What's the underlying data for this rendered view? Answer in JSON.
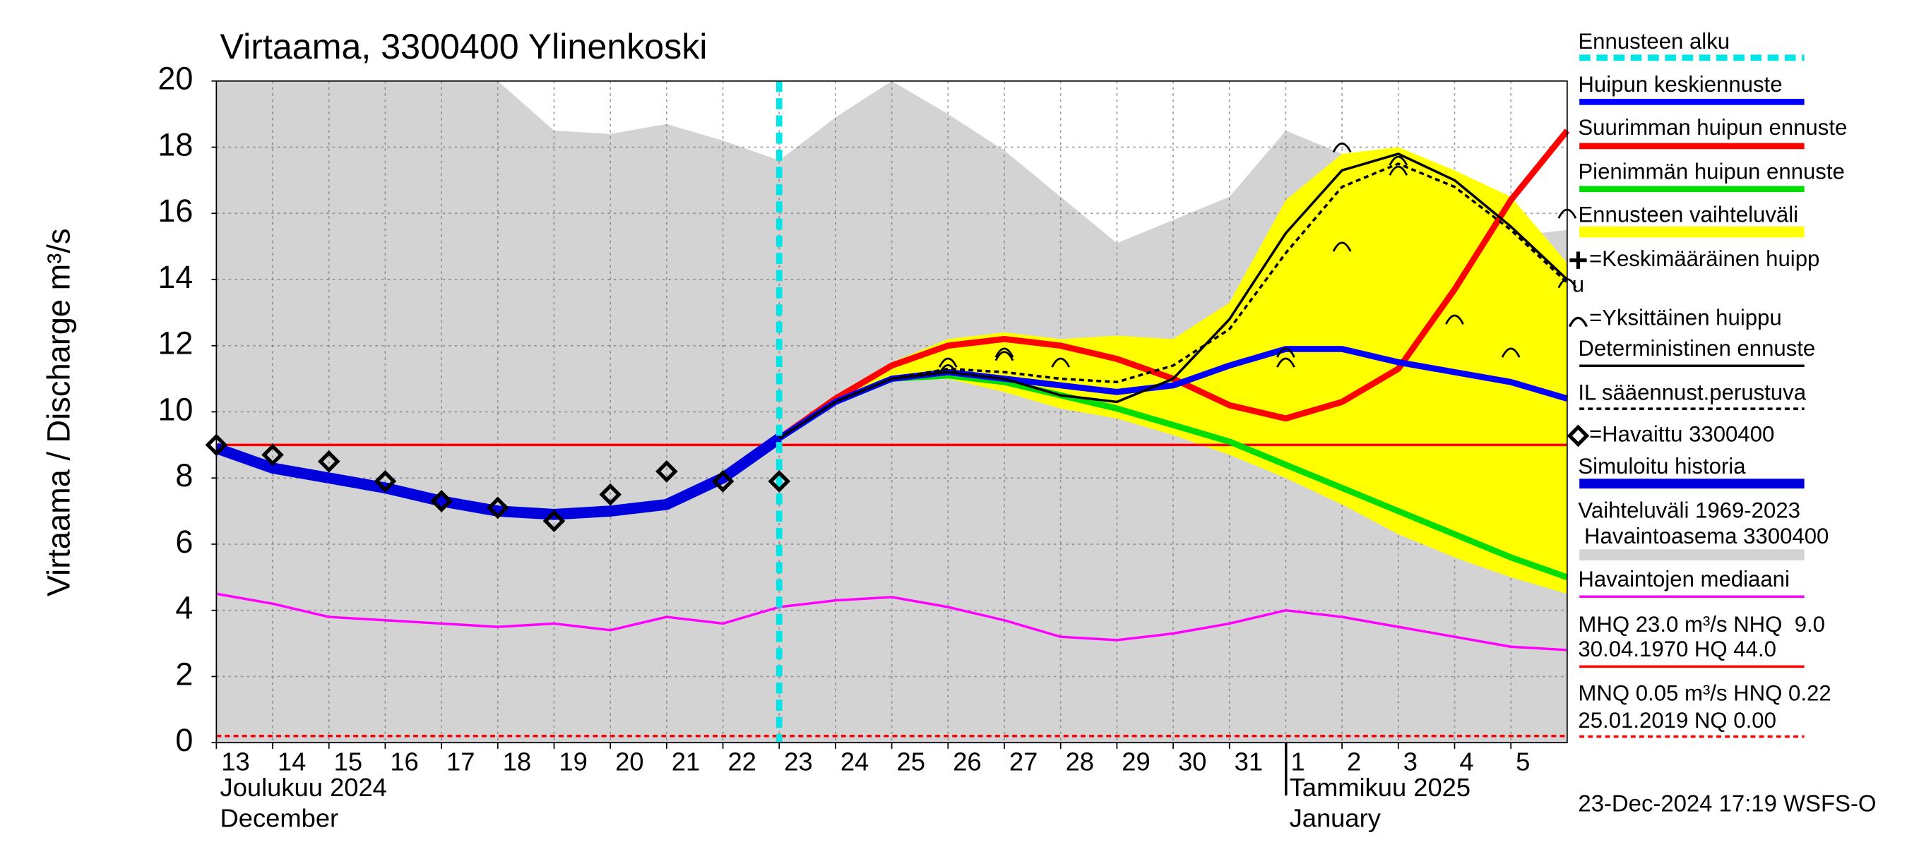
{
  "chart_data": {
    "type": "line",
    "title": "Virtaama, 3300400 Ylinenkoski",
    "y_label": "Virtaama / Discharge   m³/s",
    "x": [
      0,
      1,
      2,
      3,
      4,
      5,
      6,
      7,
      8,
      9,
      10,
      11,
      12,
      13,
      14,
      15,
      16,
      17,
      18,
      19,
      20,
      21,
      22,
      23,
      24
    ],
    "xlim": [
      0,
      24
    ],
    "xticks": [
      {
        "value": 0,
        "label": "13"
      },
      {
        "value": 1,
        "label": "14"
      },
      {
        "value": 2,
        "label": "15"
      },
      {
        "value": 3,
        "label": "16"
      },
      {
        "value": 4,
        "label": "17"
      },
      {
        "value": 5,
        "label": "18"
      },
      {
        "value": 6,
        "label": "19"
      },
      {
        "value": 7,
        "label": "20"
      },
      {
        "value": 8,
        "label": "21"
      },
      {
        "value": 9,
        "label": "22"
      },
      {
        "value": 10,
        "label": "23"
      },
      {
        "value": 11,
        "label": "24"
      },
      {
        "value": 12,
        "label": "25"
      },
      {
        "value": 13,
        "label": "26"
      },
      {
        "value": 14,
        "label": "27"
      },
      {
        "value": 15,
        "label": "28"
      },
      {
        "value": 16,
        "label": "29"
      },
      {
        "value": 17,
        "label": "30"
      },
      {
        "value": 18,
        "label": "31"
      },
      {
        "value": 19,
        "label": "1"
      },
      {
        "value": 20,
        "label": "2"
      },
      {
        "value": 21,
        "label": "3"
      },
      {
        "value": 22,
        "label": "4"
      },
      {
        "value": 23,
        "label": "5"
      }
    ],
    "month_labels": [
      {
        "value": 0,
        "lines": [
          "Joulukuu  2024",
          "December"
        ]
      },
      {
        "value": 19,
        "lines": [
          "Tammikuu  2025",
          "January"
        ]
      }
    ],
    "ylim": [
      0,
      20
    ],
    "yticks": [
      0,
      2,
      4,
      6,
      8,
      10,
      12,
      14,
      16,
      18,
      20
    ],
    "grid": true,
    "forecast_start": 10,
    "variation_range": {
      "color": "#d3d3d3",
      "upper": [
        20,
        20,
        20,
        20,
        20,
        20,
        18.5,
        18.4,
        18.7,
        18.2,
        17.6,
        18.9,
        20,
        19,
        17.9,
        16.5,
        15.1,
        15.8,
        16.5,
        18.5,
        17.8,
        16.8,
        16.2,
        15.3,
        15.5
      ],
      "lower": [
        0,
        0,
        0,
        0,
        0,
        0,
        0,
        0,
        0,
        0,
        0,
        0,
        0,
        0,
        0,
        0,
        0,
        0,
        0,
        0,
        0,
        0,
        0,
        0,
        0
      ]
    },
    "forecast_range": {
      "color": "#ffff00",
      "upper": [
        null,
        null,
        null,
        null,
        null,
        null,
        null,
        null,
        null,
        null,
        9.2,
        10.5,
        11.5,
        12.2,
        12.4,
        12.2,
        12.3,
        12.2,
        13.3,
        16.4,
        17.8,
        18.0,
        17.3,
        16.5,
        14.5
      ],
      "lower": [
        null,
        null,
        null,
        null,
        null,
        null,
        null,
        null,
        null,
        null,
        9.2,
        10.3,
        11.0,
        11.0,
        10.6,
        10.1,
        9.8,
        9.3,
        8.7,
        8.0,
        7.2,
        6.3,
        5.6,
        5.0,
        4.5
      ]
    },
    "reference_lines": [
      {
        "value": 9.0,
        "color": "#ff0000",
        "style": "thin"
      },
      {
        "value": 0.2,
        "color": "#ff0000",
        "style": "dashed"
      }
    ],
    "series": [
      {
        "color": "#ff00ff",
        "style": "thin",
        "values": [
          4.5,
          4.2,
          3.8,
          3.7,
          3.6,
          3.5,
          3.6,
          3.4,
          3.8,
          3.6,
          4.1,
          4.3,
          4.4,
          4.1,
          3.7,
          3.2,
          3.1,
          3.3,
          3.6,
          4.0,
          3.8,
          3.5,
          3.2,
          2.9,
          2.8
        ]
      },
      {
        "color": "#0000dd",
        "style": "history",
        "values": [
          8.9,
          8.3,
          8.0,
          7.7,
          7.3,
          7.0,
          6.9,
          7.0,
          7.2,
          8.0,
          9.2,
          null,
          null,
          null,
          null,
          null,
          null,
          null,
          null,
          null,
          null,
          null,
          null,
          null,
          null
        ]
      },
      {
        "color": "#00dd00",
        "style": "thick",
        "values": [
          null,
          null,
          null,
          null,
          null,
          null,
          null,
          null,
          null,
          null,
          9.2,
          10.3,
          11.0,
          11.1,
          10.9,
          10.5,
          10.1,
          9.6,
          9.1,
          8.4,
          7.7,
          7.0,
          6.3,
          5.6,
          5.0
        ]
      },
      {
        "color": "#ff0000",
        "style": "thick",
        "values": [
          null,
          null,
          null,
          null,
          null,
          null,
          null,
          null,
          null,
          null,
          9.2,
          10.4,
          11.4,
          12.0,
          12.2,
          12.0,
          11.6,
          11.0,
          10.2,
          9.8,
          10.3,
          11.3,
          13.7,
          16.4,
          18.5
        ]
      },
      {
        "color": "#0000ff",
        "style": "thick",
        "values": [
          null,
          null,
          null,
          null,
          null,
          null,
          null,
          null,
          null,
          null,
          9.2,
          10.3,
          11.0,
          11.2,
          11.0,
          10.8,
          10.6,
          10.8,
          11.4,
          11.9,
          11.9,
          11.5,
          11.2,
          10.9,
          10.4
        ]
      },
      {
        "color": "#000000",
        "style": "thin",
        "values": [
          null,
          null,
          null,
          null,
          null,
          null,
          null,
          null,
          null,
          null,
          9.2,
          10.3,
          11.0,
          11.2,
          11.0,
          10.5,
          10.3,
          11.0,
          12.8,
          15.4,
          17.3,
          17.8,
          17.0,
          15.6,
          14.0
        ]
      },
      {
        "color": "#000000",
        "style": "dashed",
        "values": [
          null,
          null,
          null,
          null,
          null,
          null,
          null,
          null,
          null,
          null,
          9.2,
          10.3,
          11.0,
          11.3,
          11.2,
          11.0,
          10.9,
          11.4,
          12.5,
          14.8,
          16.8,
          17.5,
          16.8,
          15.5,
          13.9
        ]
      }
    ],
    "observed": {
      "values": [
        9.0,
        8.7,
        8.5,
        7.9,
        7.3,
        7.1,
        6.7,
        7.5,
        8.2,
        7.9,
        7.9,
        null,
        null,
        null,
        null,
        null,
        null,
        null,
        null,
        null,
        null,
        null,
        null,
        null,
        null
      ]
    },
    "peaks": {
      "x": [
        13,
        13,
        14,
        14,
        15,
        19,
        19,
        20,
        20,
        21,
        21,
        22,
        23,
        24,
        24
      ],
      "values": [
        11.5,
        11.3,
        11.8,
        11.7,
        11.5,
        11.8,
        11.5,
        18.0,
        15.0,
        17.6,
        17.3,
        12.8,
        11.8,
        16.0,
        13.9
      ]
    },
    "legend": [
      "Ennusteen alku",
      "Huipun keskiennuste",
      "Suurimman huipun ennuste",
      "Pienimmän huipun ennuste",
      "Ennusteen vaihteluväli",
      "=Keskimääräinen huipp",
      "u",
      "=Yksittäinen huippu",
      "Deterministinen ennuste",
      "IL sääennust.perustuva",
      "=Havaittu 3300400",
      "Simuloitu historia",
      "Vaihteluväli 1969-2023",
      " Havaintoasema 3300400",
      "Havaintojen mediaani",
      "MHQ 23.0 m³/s NHQ  9.0",
      "30.04.1970 HQ 44.0",
      "MNQ 0.05 m³/s HNQ 0.22",
      "25.01.2019 NQ 0.00"
    ],
    "timestamp": "23-Dec-2024 17:19 WSFS-O"
  }
}
